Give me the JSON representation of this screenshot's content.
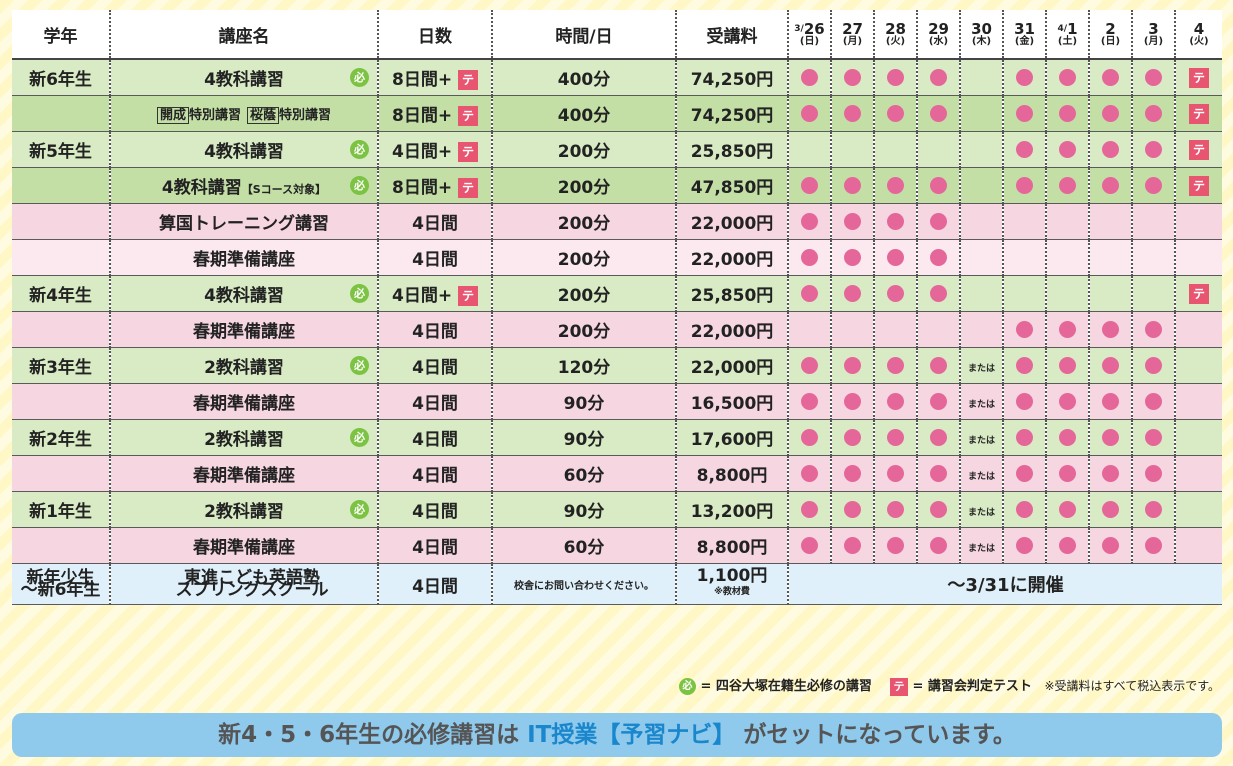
{
  "colors": {
    "dot": "#e5679a",
    "test_badge": "#e85570",
    "required_badge": "#7cc243",
    "banner_bg": "#8fc9ec",
    "banner_highlight": "#1a87cd"
  },
  "header": {
    "grade": "学年",
    "course": "講座名",
    "days": "日数",
    "time": "時間/日",
    "fee": "受講料",
    "dates": [
      {
        "prefix": "3/",
        "num": "26",
        "wk": "(日)"
      },
      {
        "prefix": "",
        "num": "27",
        "wk": "(月)"
      },
      {
        "prefix": "",
        "num": "28",
        "wk": "(火)"
      },
      {
        "prefix": "",
        "num": "29",
        "wk": "(水)"
      },
      {
        "prefix": "",
        "num": "30",
        "wk": "(木)"
      },
      {
        "prefix": "",
        "num": "31",
        "wk": "(金)"
      },
      {
        "prefix": "4/",
        "num": "1",
        "wk": "(土)"
      },
      {
        "prefix": "",
        "num": "2",
        "wk": "(日)"
      },
      {
        "prefix": "",
        "num": "3",
        "wk": "(月)"
      },
      {
        "prefix": "",
        "num": "4",
        "wk": "(火)"
      }
    ]
  },
  "rows": [
    {
      "grade": "新6年生",
      "course": "4教科講習",
      "req": true,
      "days": "8日間+",
      "te": true,
      "time": "400分",
      "fee": "74,250円",
      "cells": [
        "d",
        "d",
        "d",
        "d",
        "",
        "d",
        "d",
        "d",
        "d",
        "t"
      ],
      "style": "g"
    },
    {
      "grade": "",
      "course_parts": [
        "開成",
        "特別講習",
        "桜蔭",
        "特別講習"
      ],
      "req": false,
      "days": "8日間+",
      "te": true,
      "time": "400分",
      "fee": "74,250円",
      "cells": [
        "d",
        "d",
        "d",
        "d",
        "",
        "d",
        "d",
        "d",
        "d",
        "t"
      ],
      "style": "g2"
    },
    {
      "grade": "新5年生",
      "course": "4教科講習",
      "req": true,
      "days": "4日間+",
      "te": true,
      "time": "200分",
      "fee": "25,850円",
      "cells": [
        "",
        "",
        "",
        "",
        "",
        "d",
        "d",
        "d",
        "d",
        "t"
      ],
      "style": "g"
    },
    {
      "grade": "",
      "course": "4教科講習",
      "course_note": "【Sコース対象】",
      "req": true,
      "days": "8日間+",
      "te": true,
      "time": "200分",
      "fee": "47,850円",
      "cells": [
        "d",
        "d",
        "d",
        "d",
        "",
        "d",
        "d",
        "d",
        "d",
        "t"
      ],
      "style": "g2"
    },
    {
      "grade": "",
      "course": "算国トレーニング講習",
      "req": false,
      "days": "4日間",
      "te": false,
      "time": "200分",
      "fee": "22,000円",
      "cells": [
        "d",
        "d",
        "d",
        "d",
        "",
        "",
        "",
        "",
        "",
        ""
      ],
      "style": "p"
    },
    {
      "grade": "",
      "course": "春期準備講座",
      "req": false,
      "days": "4日間",
      "te": false,
      "time": "200分",
      "fee": "22,000円",
      "cells": [
        "d",
        "d",
        "d",
        "d",
        "",
        "",
        "",
        "",
        "",
        ""
      ],
      "style": "p2"
    },
    {
      "grade": "新4年生",
      "course": "4教科講習",
      "req": true,
      "days": "4日間+",
      "te": true,
      "time": "200分",
      "fee": "25,850円",
      "cells": [
        "d",
        "d",
        "d",
        "d",
        "",
        "",
        "",
        "",
        "",
        "t"
      ],
      "style": "g"
    },
    {
      "grade": "",
      "course": "春期準備講座",
      "req": false,
      "days": "4日間",
      "te": false,
      "time": "200分",
      "fee": "22,000円",
      "cells": [
        "",
        "",
        "",
        "",
        "",
        "d",
        "d",
        "d",
        "d",
        ""
      ],
      "style": "p"
    },
    {
      "grade": "新3年生",
      "course": "2教科講習",
      "req": true,
      "days": "4日間",
      "te": false,
      "time": "120分",
      "fee": "22,000円",
      "cells": [
        "d",
        "d",
        "d",
        "d",
        "m",
        "d",
        "d",
        "d",
        "d",
        ""
      ],
      "style": "g"
    },
    {
      "grade": "",
      "course": "春期準備講座",
      "req": false,
      "days": "4日間",
      "te": false,
      "time": "90分",
      "fee": "16,500円",
      "cells": [
        "d",
        "d",
        "d",
        "d",
        "m",
        "d",
        "d",
        "d",
        "d",
        ""
      ],
      "style": "p"
    },
    {
      "grade": "新2年生",
      "course": "2教科講習",
      "req": true,
      "days": "4日間",
      "te": false,
      "time": "90分",
      "fee": "17,600円",
      "cells": [
        "d",
        "d",
        "d",
        "d",
        "m",
        "d",
        "d",
        "d",
        "d",
        ""
      ],
      "style": "g"
    },
    {
      "grade": "",
      "course": "春期準備講座",
      "req": false,
      "days": "4日間",
      "te": false,
      "time": "60分",
      "fee": "8,800円",
      "cells": [
        "d",
        "d",
        "d",
        "d",
        "m",
        "d",
        "d",
        "d",
        "d",
        ""
      ],
      "style": "p"
    },
    {
      "grade": "新1年生",
      "course": "2教科講習",
      "req": true,
      "days": "4日間",
      "te": false,
      "time": "90分",
      "fee": "13,200円",
      "cells": [
        "d",
        "d",
        "d",
        "d",
        "m",
        "d",
        "d",
        "d",
        "d",
        ""
      ],
      "style": "g"
    },
    {
      "grade": "",
      "course": "春期準備講座",
      "req": false,
      "days": "4日間",
      "te": false,
      "time": "60分",
      "fee": "8,800円",
      "cells": [
        "d",
        "d",
        "d",
        "d",
        "m",
        "d",
        "d",
        "d",
        "d",
        ""
      ],
      "style": "p"
    }
  ],
  "last_row": {
    "grade_line1": "新年少生",
    "grade_line2": "〜新6年生",
    "course_line1": "東進こども英語塾",
    "course_line2": "スプリングスクール",
    "days": "4日間",
    "time": "校舎にお問い合わせください。",
    "fee": "1,100円",
    "fee_note": "※教材費",
    "schedule": "〜3/31に開催"
  },
  "labels": {
    "required_mark": "必",
    "test_mark": "テ",
    "or_mark": "または"
  },
  "legend": {
    "required_text": "= 四谷大塚在籍生必修の講習",
    "test_text": "= 講習会判定テスト",
    "note": "※受講料はすべて税込表示です。"
  },
  "banner": {
    "part1": "新4・5・6年生の必修講習は ",
    "part2": "IT授業【予習ナビ】",
    "part3": " がセットになっています。"
  }
}
